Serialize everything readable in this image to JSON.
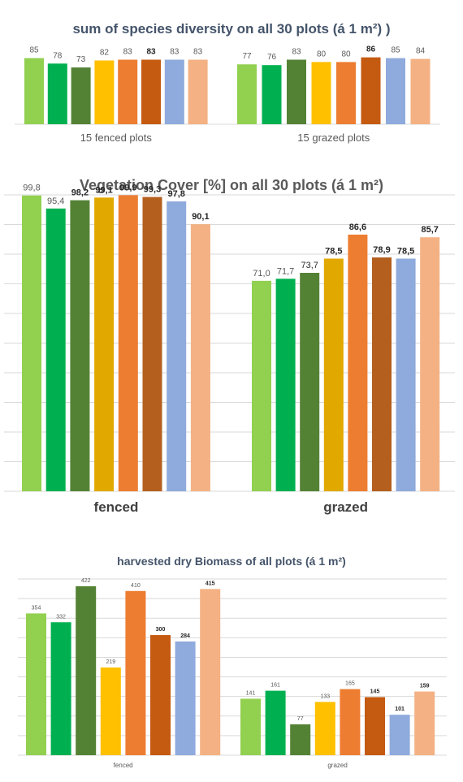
{
  "palette": {
    "c1": "#92d050",
    "c2": "#00b050",
    "c3": "#548235",
    "c4": "#ffc000",
    "c5": "#ed7d31",
    "c6": "#c55a11",
    "c7": "#8faadc",
    "c8": "#f4b183",
    "c4_cover": "#e1a800",
    "c6_cover": "#b45f1e",
    "grid": "#d9d9d9",
    "text": "#595959",
    "title": "#44546a",
    "title_cover": "#595959"
  },
  "chart_data": [
    {
      "type": "bar",
      "title": "sum of species diversity on all 30 plots (á 1 m²) )",
      "categories": [
        "15 fenced plots",
        "15 grazed plots"
      ],
      "series": [
        {
          "values": [
            85,
            77
          ],
          "labels": [
            "85",
            "77"
          ]
        },
        {
          "values": [
            78,
            76
          ],
          "labels": [
            "78",
            "76"
          ]
        },
        {
          "values": [
            73,
            83
          ],
          "labels": [
            "73",
            "83"
          ]
        },
        {
          "values": [
            82,
            80
          ],
          "labels": [
            "82",
            "80"
          ]
        },
        {
          "values": [
            83,
            80
          ],
          "labels": [
            "83",
            "80"
          ]
        },
        {
          "values": [
            83,
            86
          ],
          "labels": [
            "83",
            "86"
          ]
        },
        {
          "values": [
            83,
            85
          ],
          "labels": [
            "83",
            "85"
          ]
        },
        {
          "values": [
            83,
            84
          ],
          "labels": [
            "83",
            "84"
          ]
        }
      ],
      "xlabel": "",
      "ylabel": "",
      "ylim": [
        0,
        95
      ],
      "grid": false
    },
    {
      "type": "bar",
      "title": "Vegetation Cover [%] on all 30 plots (á 1 m²)",
      "categories": [
        "fenced",
        "grazed"
      ],
      "series": [
        {
          "values": [
            99.8,
            71.0
          ],
          "labels": [
            "99,8",
            "71,0"
          ]
        },
        {
          "values": [
            95.4,
            71.7
          ],
          "labels": [
            "95,4",
            "71,7"
          ]
        },
        {
          "values": [
            98.2,
            73.7
          ],
          "labels": [
            "98,2",
            "73,7"
          ]
        },
        {
          "values": [
            99.1,
            78.5
          ],
          "labels": [
            "99,1",
            "78,5"
          ]
        },
        {
          "values": [
            99.9,
            86.6
          ],
          "labels": [
            "99,9",
            "86,6"
          ]
        },
        {
          "values": [
            99.3,
            78.9
          ],
          "labels": [
            "99,3",
            "78,9"
          ]
        },
        {
          "values": [
            97.8,
            78.5
          ],
          "labels": [
            "97,8",
            "78,5"
          ]
        },
        {
          "values": [
            90.1,
            85.7
          ],
          "labels": [
            "90,1",
            "85,7"
          ]
        }
      ],
      "xlabel": "",
      "ylabel": "",
      "ylim": [
        0,
        100
      ],
      "grid": true
    },
    {
      "type": "bar",
      "title": "harvested dry Biomass of all plots (á 1 m²)",
      "categories": [
        "fenced",
        "grazed"
      ],
      "series": [
        {
          "values": [
            354,
            141
          ],
          "labels": [
            "354",
            "141"
          ]
        },
        {
          "values": [
            332,
            161
          ],
          "labels": [
            "332",
            "161"
          ]
        },
        {
          "values": [
            422,
            77
          ],
          "labels": [
            "422",
            "77"
          ]
        },
        {
          "values": [
            219,
            133
          ],
          "labels": [
            "219",
            "133"
          ]
        },
        {
          "values": [
            410,
            165
          ],
          "labels": [
            "410",
            "165"
          ]
        },
        {
          "values": [
            300,
            145
          ],
          "labels": [
            "300",
            "145"
          ]
        },
        {
          "values": [
            284,
            101
          ],
          "labels": [
            "284",
            "101"
          ]
        },
        {
          "values": [
            415,
            159
          ],
          "labels": [
            "415",
            "159"
          ]
        }
      ],
      "xlabel": "",
      "ylabel": "",
      "ylim": [
        0,
        440
      ],
      "grid": true
    }
  ]
}
